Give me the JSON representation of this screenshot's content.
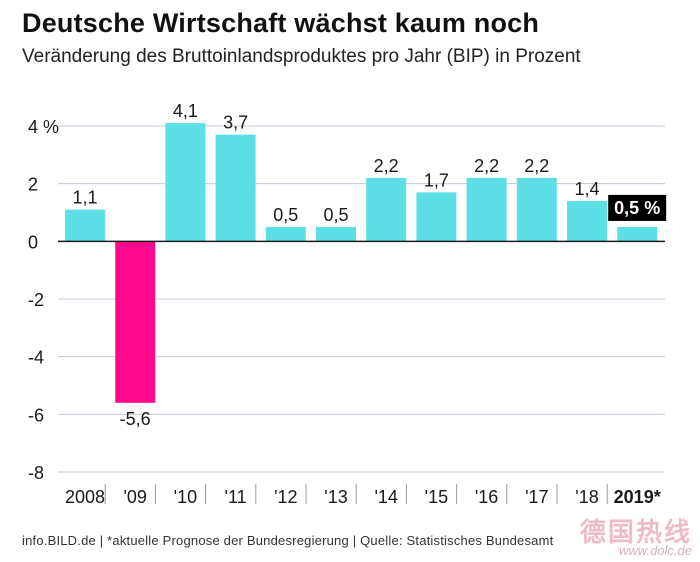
{
  "title": "Deutsche Wirtschaft wächst kaum noch",
  "subtitle": "Veränderung des Bruttoinlandsproduktes pro Jahr (BIP) in Prozent",
  "footer": "info.BILD.de | *aktuelle Prognose der Bundesregierung | Quelle: Statistisches Bundesamt",
  "watermark": {
    "text": "德国热线",
    "url": "www.dolc.de"
  },
  "colors": {
    "positive": "#5ce0e6",
    "negative": "#ff0a8c",
    "highlight_bg": "#000000",
    "highlight_text": "#ffffff",
    "grid": "#c8c8d8",
    "zero_line": "#1a1a1a"
  },
  "chart_data": {
    "type": "bar",
    "title": "Deutsche Wirtschaft wächst kaum noch",
    "subtitle": "Veränderung des Bruttoinlandsproduktes pro Jahr (BIP) in Prozent",
    "xlabel": "",
    "ylabel": "Prozent",
    "ylim": [
      -8,
      4
    ],
    "yticks": [
      {
        "value": 4,
        "label": "4 %"
      },
      {
        "value": 2,
        "label": "2"
      },
      {
        "value": 0,
        "label": "0"
      },
      {
        "value": -2,
        "label": "-2"
      },
      {
        "value": -4,
        "label": "-4"
      },
      {
        "value": -6,
        "label": "-6"
      },
      {
        "value": -8,
        "label": "-8"
      }
    ],
    "categories": [
      "2008",
      "'09",
      "'10",
      "'11",
      "'12",
      "'13",
      "'14",
      "'15",
      "'16",
      "'17",
      "'18",
      "2019*"
    ],
    "values": [
      1.1,
      -5.6,
      4.1,
      3.7,
      0.5,
      0.5,
      2.2,
      1.7,
      2.2,
      2.2,
      1.4,
      0.5
    ],
    "labels": [
      "1,1",
      "-5,6",
      "4,1",
      "3,7",
      "0,5",
      "0,5",
      "2,2",
      "1,7",
      "2,2",
      "2,2",
      "1,4",
      "0,5 %"
    ],
    "highlight_index": 11,
    "grid": true
  }
}
